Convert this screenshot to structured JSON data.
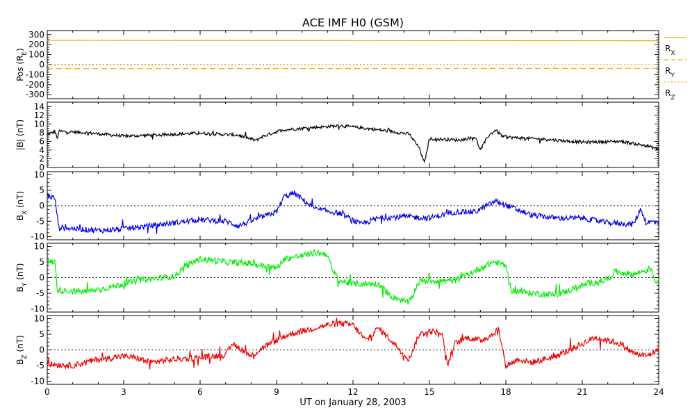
{
  "chart_data": {
    "type": "line",
    "title": "ACE IMF H0 (GSM)",
    "xlabel": "UT on January 28, 2003",
    "x_ticks": [
      "0",
      "3",
      "6",
      "9",
      "12",
      "15",
      "18",
      "21",
      "24"
    ],
    "xlim": [
      0,
      24
    ],
    "panels": [
      {
        "name": "pos",
        "ylabel": "Pos (RE)",
        "ylabel_parts": {
          "main": "Pos (R",
          "sub": "E",
          "tail": ")"
        },
        "ylim": [
          -340,
          340
        ],
        "yticks": [
          300,
          200,
          100,
          0,
          -100,
          -200,
          -300
        ],
        "zero_line": true,
        "legend": [
          {
            "main": "R",
            "sub": "X",
            "color": "#ffa500",
            "dash": ""
          },
          {
            "main": "R",
            "sub": "Y",
            "color": "#ffa500",
            "dash": "6,4"
          },
          {
            "main": "R",
            "sub": "Z",
            "color": "#ffa500",
            "dash": "2,3"
          }
        ],
        "series": [
          {
            "name": "RX",
            "color": "#ffa500",
            "dash": "",
            "keys": [
              [
                0,
                243
              ],
              [
                24,
                239
              ]
            ]
          },
          {
            "name": "RY",
            "color": "#ffa500",
            "dash": "8,5",
            "keys": [
              [
                0,
                -40
              ],
              [
                12,
                -38
              ],
              [
                24,
                -37
              ]
            ]
          },
          {
            "name": "RZ",
            "color": "#ffa500",
            "dash": "2,3",
            "keys": [
              [
                0,
                3
              ],
              [
                24,
                1
              ]
            ]
          }
        ]
      },
      {
        "name": "bmag",
        "ylabel": "|B| (nT)",
        "ylabel_parts": {
          "main": "|B| (nT)",
          "sub": "",
          "tail": ""
        },
        "ylim": [
          0,
          15
        ],
        "yticks": [
          14,
          12,
          10,
          8,
          6,
          4,
          2,
          0
        ],
        "zero_line": false,
        "series": [
          {
            "name": "|B|",
            "color": "#000000",
            "dash": "",
            "noise": 0.35,
            "keys": [
              [
                0,
                7.5
              ],
              [
                0.3,
                8.3
              ],
              [
                0.4,
                6.5
              ],
              [
                0.45,
                8.3
              ],
              [
                1.5,
                8.0
              ],
              [
                3,
                7.2
              ],
              [
                4.5,
                7.5
              ],
              [
                6,
                7.9
              ],
              [
                7.5,
                7.4
              ],
              [
                8.2,
                6.2
              ],
              [
                8.4,
                7.0
              ],
              [
                9.2,
                8.6
              ],
              [
                10,
                9.0
              ],
              [
                11.5,
                9.6
              ],
              [
                12.8,
                8.8
              ],
              [
                14.2,
                7.7
              ],
              [
                14.6,
                4.5
              ],
              [
                14.8,
                1.0
              ],
              [
                15.0,
                6.6
              ],
              [
                16.2,
                6.3
              ],
              [
                16.8,
                7.0
              ],
              [
                17.0,
                4.0
              ],
              [
                17.3,
                7.2
              ],
              [
                17.6,
                8.6
              ],
              [
                17.9,
                7.0
              ],
              [
                19.5,
                6.5
              ],
              [
                21,
                5.8
              ],
              [
                22.5,
                6.0
              ],
              [
                23.5,
                5.0
              ],
              [
                24,
                4.2
              ]
            ]
          }
        ]
      },
      {
        "name": "bx",
        "ylabel": "BX (nT)",
        "ylabel_parts": {
          "main": "B",
          "sub": "X",
          "tail": " (nT)"
        },
        "ylim": [
          -11,
          11
        ],
        "yticks": [
          10,
          5,
          0,
          -5,
          -10
        ],
        "zero_line": true,
        "series": [
          {
            "name": "BX",
            "color": "#0000e6",
            "dash": "",
            "noise": 0.9,
            "keys": [
              [
                0,
                3.2
              ],
              [
                0.3,
                2.5
              ],
              [
                0.45,
                -7
              ],
              [
                2,
                -8
              ],
              [
                3,
                -7.5
              ],
              [
                4,
                -6.5
              ],
              [
                5,
                -5.5
              ],
              [
                6,
                -4.5
              ],
              [
                7,
                -5
              ],
              [
                7.5,
                -6.5
              ],
              [
                8.3,
                -4
              ],
              [
                9,
                -2
              ],
              [
                9.3,
                3
              ],
              [
                9.7,
                4
              ],
              [
                10.5,
                -1
              ],
              [
                11.5,
                -2.5
              ],
              [
                12.3,
                -6
              ],
              [
                13,
                -4
              ],
              [
                14,
                -3.5
              ],
              [
                15,
                -4
              ],
              [
                16,
                -2
              ],
              [
                16.8,
                -2
              ],
              [
                17.6,
                1.5
              ],
              [
                18.2,
                -0.5
              ],
              [
                19,
                -3
              ],
              [
                20,
                -4
              ],
              [
                21,
                -4
              ],
              [
                22,
                -5.5
              ],
              [
                23,
                -6
              ],
              [
                23.3,
                -1
              ],
              [
                23.5,
                -5.5
              ],
              [
                24,
                -5
              ]
            ]
          }
        ]
      },
      {
        "name": "by",
        "ylabel": "BY (nT)",
        "ylabel_parts": {
          "main": "B",
          "sub": "Y",
          "tail": " (nT)"
        },
        "ylim": [
          -11,
          11
        ],
        "yticks": [
          10,
          5,
          0,
          -5,
          -10
        ],
        "zero_line": true,
        "series": [
          {
            "name": "BY",
            "color": "#00ee00",
            "dash": "",
            "noise": 1.0,
            "keys": [
              [
                0,
                5
              ],
              [
                0.3,
                5
              ],
              [
                0.4,
                -4
              ],
              [
                1.5,
                -4.5
              ],
              [
                2.5,
                -3
              ],
              [
                3.5,
                -1
              ],
              [
                4.5,
                0
              ],
              [
                5,
                0.5
              ],
              [
                5.5,
                4
              ],
              [
                6,
                6
              ],
              [
                7,
                5
              ],
              [
                8,
                4.5
              ],
              [
                9,
                3
              ],
              [
                9.3,
                6
              ],
              [
                10,
                7
              ],
              [
                10.5,
                8
              ],
              [
                11,
                7.5
              ],
              [
                11.2,
                2
              ],
              [
                11.5,
                -1
              ],
              [
                12,
                -2
              ],
              [
                13,
                -2
              ],
              [
                13.5,
                -6
              ],
              [
                14.2,
                -8
              ],
              [
                14.6,
                -1
              ],
              [
                15.2,
                -1
              ],
              [
                16,
                -1
              ],
              [
                17,
                3
              ],
              [
                17.5,
                5
              ],
              [
                18,
                4
              ],
              [
                18.2,
                -4
              ],
              [
                19,
                -5
              ],
              [
                20,
                -5.5
              ],
              [
                21,
                -2.5
              ],
              [
                22,
                -0.5
              ],
              [
                22.3,
                2
              ],
              [
                23,
                1
              ],
              [
                23.7,
                3
              ],
              [
                23.9,
                -2
              ],
              [
                24,
                0
              ]
            ]
          }
        ]
      },
      {
        "name": "bz",
        "ylabel": "BZ (nT)",
        "ylabel_parts": {
          "main": "B",
          "sub": "Z",
          "tail": " (nT)"
        },
        "ylim": [
          -11,
          11
        ],
        "yticks": [
          10,
          5,
          0,
          -5,
          -10
        ],
        "zero_line": true,
        "series": [
          {
            "name": "BZ",
            "color": "#ee0000",
            "dash": "",
            "noise": 1.0,
            "keys": [
              [
                0,
                -4.5
              ],
              [
                1,
                -5
              ],
              [
                2,
                -3
              ],
              [
                3,
                -2
              ],
              [
                3.5,
                -2.5
              ],
              [
                4,
                -4
              ],
              [
                5,
                -3
              ],
              [
                6,
                -2.5
              ],
              [
                7,
                -1.5
              ],
              [
                7.3,
                2
              ],
              [
                8,
                -2
              ],
              [
                8.5,
                1
              ],
              [
                9,
                3
              ],
              [
                9.5,
                5
              ],
              [
                10,
                6
              ],
              [
                10.5,
                7
              ],
              [
                11,
                8
              ],
              [
                11.5,
                8.5
              ],
              [
                12,
                8
              ],
              [
                12.5,
                3
              ],
              [
                13,
                7
              ],
              [
                13.5,
                3
              ],
              [
                14.2,
                -3
              ],
              [
                14.6,
                5
              ],
              [
                15,
                6
              ],
              [
                15.5,
                5.5
              ],
              [
                15.7,
                -5
              ],
              [
                16,
                2
              ],
              [
                16.5,
                4
              ],
              [
                17,
                3
              ],
              [
                17.5,
                5
              ],
              [
                17.7,
                7
              ],
              [
                18,
                -5
              ],
              [
                18.5,
                -3
              ],
              [
                19,
                -4
              ],
              [
                20,
                -2
              ],
              [
                20.5,
                0
              ],
              [
                21,
                2
              ],
              [
                21.5,
                4
              ],
              [
                22,
                3
              ],
              [
                22.5,
                2
              ],
              [
                23,
                -1
              ],
              [
                23.5,
                -2
              ],
              [
                24,
                0
              ]
            ]
          }
        ]
      }
    ]
  }
}
